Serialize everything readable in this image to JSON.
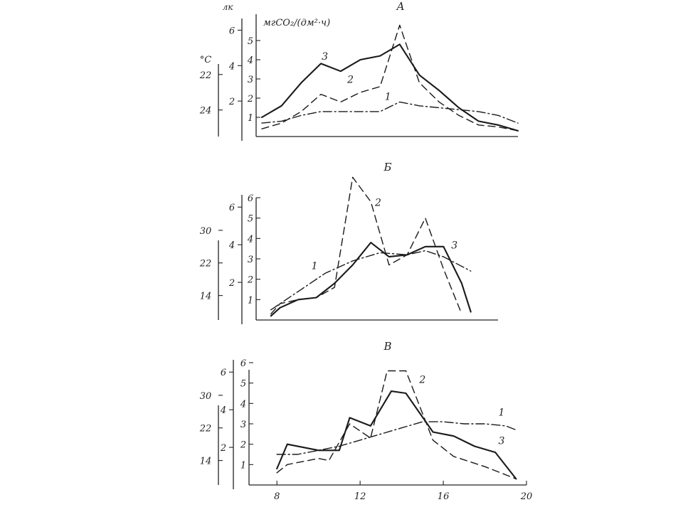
{
  "chart_data": [
    {
      "type": "line",
      "panel_label": "А",
      "unit_lux": "лк",
      "unit_co2": "мгСО₂/(дм²·ч)",
      "unit_temp": "°C",
      "x_range": [
        7,
        20
      ],
      "co2_axis": {
        "range": [
          0,
          6
        ],
        "ticks": [
          "1",
          "2",
          "3",
          "4",
          "5"
        ]
      },
      "lux_axis": {
        "range": [
          0,
          6.5
        ],
        "ticks": [
          "2",
          "4",
          "6"
        ]
      },
      "temp_axis": {
        "range": [
          25.5,
          19
        ],
        "ticks": [
          "22",
          "24"
        ]
      },
      "series": [
        {
          "name": "1",
          "style": "dashdot",
          "x": [
            7,
            8,
            9,
            10,
            11,
            12,
            13,
            14,
            15,
            16,
            17,
            18,
            19,
            20
          ],
          "y": [
            0.7,
            0.8,
            1.1,
            1.3,
            1.3,
            1.3,
            1.3,
            1.8,
            1.6,
            1.5,
            1.4,
            1.3,
            1.1,
            0.7
          ]
        },
        {
          "name": "2",
          "style": "dashed",
          "x": [
            7,
            8,
            9,
            10,
            11,
            12,
            13,
            14,
            15,
            16,
            17,
            18,
            19,
            20
          ],
          "y": [
            0.4,
            0.7,
            1.3,
            2.2,
            1.8,
            2.3,
            2.6,
            5.8,
            2.8,
            1.8,
            1.1,
            0.6,
            0.5,
            0.3
          ]
        },
        {
          "name": "3",
          "style": "solid",
          "x": [
            7,
            8,
            9,
            10,
            11,
            12,
            13,
            14,
            15,
            16,
            17,
            18,
            19,
            20
          ],
          "y": [
            1.0,
            1.6,
            2.8,
            3.8,
            3.4,
            4.0,
            4.2,
            4.8,
            3.2,
            2.4,
            1.5,
            0.8,
            0.6,
            0.3
          ]
        }
      ],
      "series_labels": [
        {
          "text": "1",
          "x": 13.4,
          "y": 1.9
        },
        {
          "text": "2",
          "x": 11.5,
          "y": 2.8
        },
        {
          "text": "3",
          "x": 10.2,
          "y": 4.0
        }
      ]
    },
    {
      "type": "line",
      "panel_label": "Б",
      "x_range": [
        7,
        20
      ],
      "co2_axis": {
        "range": [
          0,
          6
        ],
        "ticks": [
          "1",
          "2",
          "3",
          "4",
          "5",
          "6"
        ]
      },
      "lux_axis": {
        "range": [
          0,
          6.5
        ],
        "ticks": [
          "2",
          "4",
          "6"
        ]
      },
      "temp_axis": {
        "range": [
          8,
          38
        ],
        "ticks": [
          "14",
          "22",
          "30"
        ]
      },
      "series": [
        {
          "name": "1",
          "style": "dashdot",
          "x": [
            7.5,
            9,
            10.5,
            12,
            13.5,
            15,
            16,
            17,
            18.5
          ],
          "y": [
            0.5,
            1.4,
            2.3,
            2.9,
            3.3,
            3.2,
            3.4,
            3.1,
            2.4
          ]
        },
        {
          "name": "2",
          "style": "dashed",
          "x": [
            7.5,
            8,
            9,
            10,
            11,
            12,
            13,
            14,
            15,
            16,
            17,
            18
          ],
          "y": [
            0.3,
            0.8,
            1.0,
            1.1,
            1.6,
            7.0,
            5.8,
            2.7,
            3.2,
            5.0,
            2.5,
            0.3
          ]
        },
        {
          "name": "3",
          "style": "solid",
          "x": [
            7.5,
            8,
            9,
            10,
            11,
            12,
            13,
            14,
            15,
            16,
            17,
            18,
            18.5
          ],
          "y": [
            0.2,
            0.6,
            1.0,
            1.1,
            1.8,
            2.7,
            3.8,
            3.1,
            3.2,
            3.6,
            3.6,
            1.8,
            0.4
          ]
        }
      ],
      "series_labels": [
        {
          "text": "1",
          "x": 9.9,
          "y": 2.5
        },
        {
          "text": "2",
          "x": 13.4,
          "y": 5.6
        },
        {
          "text": "3",
          "x": 17.6,
          "y": 3.5
        }
      ]
    },
    {
      "type": "line",
      "panel_label": "В",
      "x_range": [
        7,
        20
      ],
      "x_ticks": [
        "8",
        "12",
        "16",
        "20"
      ],
      "co2_axis": {
        "range": [
          0,
          6
        ],
        "ticks": [
          "1",
          "2",
          "3",
          "4",
          "5",
          "6"
        ]
      },
      "lux_axis": {
        "range": [
          0,
          6.5
        ],
        "ticks": [
          "2",
          "4",
          "6"
        ]
      },
      "temp_axis": {
        "range": [
          8,
          38
        ],
        "ticks": [
          "14",
          "22",
          "30"
        ]
      },
      "series": [
        {
          "name": "1",
          "style": "dashdot",
          "x": [
            8,
            9,
            10,
            11,
            12,
            13,
            14,
            15,
            16,
            17,
            18,
            19,
            19.5
          ],
          "y": [
            1.5,
            1.5,
            1.7,
            1.9,
            2.2,
            2.5,
            2.8,
            3.1,
            3.1,
            3.0,
            3.0,
            2.9,
            2.7
          ]
        },
        {
          "name": "2",
          "style": "dashed",
          "x": [
            8,
            8.5,
            10,
            10.5,
            11.5,
            12.5,
            13.3,
            14.2,
            15.5,
            16.5,
            18,
            19.5
          ],
          "y": [
            0.6,
            1.0,
            1.3,
            1.2,
            3.0,
            2.3,
            5.6,
            5.6,
            2.2,
            1.4,
            0.9,
            0.3
          ]
        },
        {
          "name": "3",
          "style": "solid",
          "x": [
            8,
            8.5,
            10,
            11,
            11.5,
            12.5,
            13.5,
            14.2,
            15.5,
            16.5,
            17.5,
            18.5,
            19.5
          ],
          "y": [
            0.8,
            2.0,
            1.7,
            1.7,
            3.3,
            2.9,
            4.6,
            4.5,
            2.6,
            2.4,
            1.9,
            1.6,
            0.3
          ]
        }
      ],
      "series_labels": [
        {
          "text": "1",
          "x": 18.8,
          "y": 3.4
        },
        {
          "text": "2",
          "x": 15.0,
          "y": 5.0
        },
        {
          "text": "3",
          "x": 18.8,
          "y": 2.0
        }
      ]
    }
  ]
}
